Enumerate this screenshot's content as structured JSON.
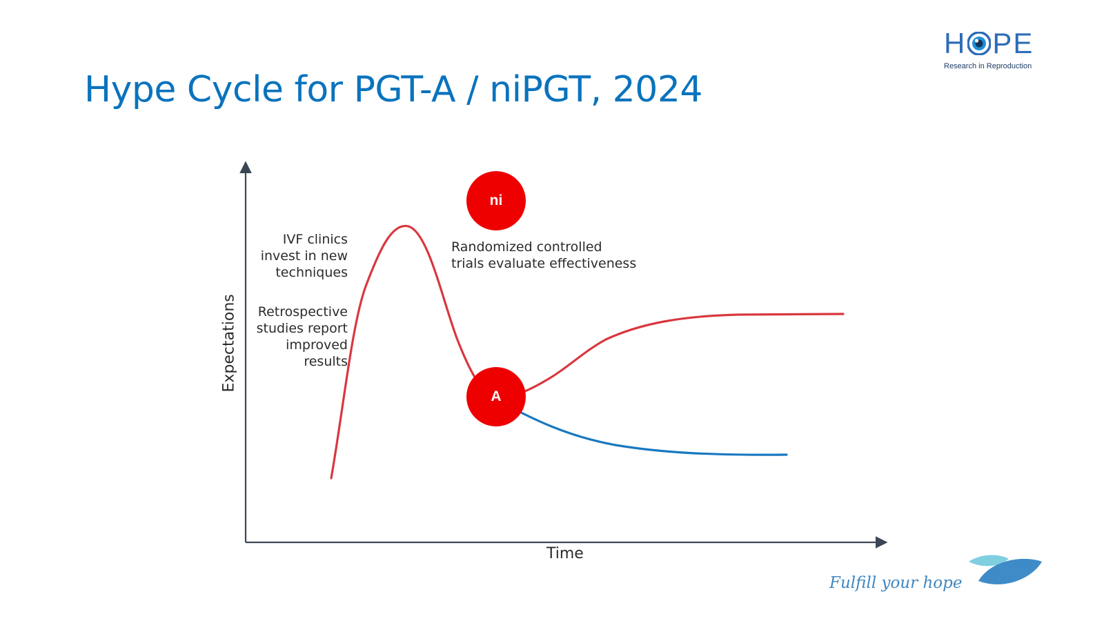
{
  "slide": {
    "title": "Hype Cycle for PGT-A / niPGT, 2024",
    "tagline": "Fulfill your hope"
  },
  "logo": {
    "word_left": "H",
    "word_right": "PE",
    "subtitle": "Research in Reproduction",
    "icon": "eye-icon"
  },
  "diagram": {
    "x_axis_label": "Time",
    "y_axis_label": "Expectations",
    "annotations": {
      "invest": [
        "IVF clinics",
        "invest in new",
        "techniques"
      ],
      "retrospective": [
        "Retrospective",
        "studies report",
        "improved",
        "results"
      ],
      "rct": [
        "Randomized controlled",
        "trials evaluate effectiveness"
      ]
    },
    "markers": {
      "ni": "ni",
      "a": "A"
    }
  },
  "colors": {
    "title": "#0a73bd",
    "hype_curve": "#d9373f",
    "decline_curve": "#1878bf",
    "marker_fill": "#ee0000",
    "axis": "#3b4654",
    "logo_blue": "#2e6cb6",
    "tagline": "#3f86bf",
    "leaf_light": "#7fcfe1",
    "leaf_dark": "#3f8bc8"
  }
}
